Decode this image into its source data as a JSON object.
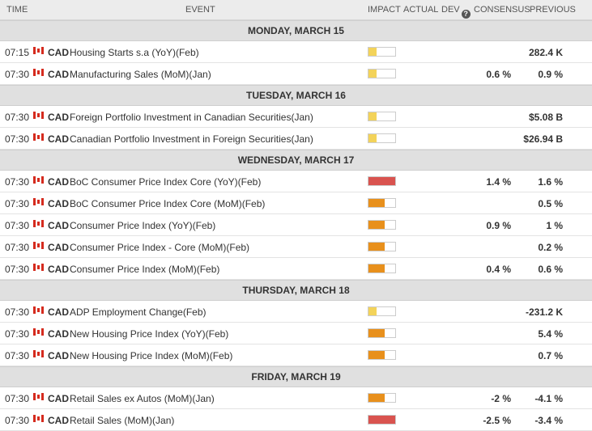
{
  "header": {
    "time": "TIME",
    "event": "EVENT",
    "impact": "IMPACT",
    "actual": "ACTUAL",
    "dev": "DEV",
    "info_icon": "info-icon",
    "consensus": "CONSENSUS",
    "previous": "PREVIOUS"
  },
  "impact_colors": {
    "low": "#f3d35a",
    "medium": "#e8901c",
    "high": "#d9534f"
  },
  "impact_levels": {
    "low": 0.3,
    "medium": 0.6,
    "high": 1.0
  },
  "flag_icon": "canada-flag-icon",
  "days": [
    {
      "label": "MONDAY, MARCH 15",
      "events": [
        {
          "time": "07:15",
          "currency": "CAD",
          "event": "Housing Starts s.a (YoY)(Feb)",
          "impact": "low",
          "actual": "",
          "dev": "",
          "consensus": "",
          "previous": "282.4 K"
        },
        {
          "time": "07:30",
          "currency": "CAD",
          "event": "Manufacturing Sales (MoM)(Jan)",
          "impact": "low",
          "actual": "",
          "dev": "",
          "consensus": "0.6 %",
          "previous": "0.9 %"
        }
      ]
    },
    {
      "label": "TUESDAY, MARCH 16",
      "events": [
        {
          "time": "07:30",
          "currency": "CAD",
          "event": "Foreign Portfolio Investment in Canadian Securities(Jan)",
          "impact": "low",
          "actual": "",
          "dev": "",
          "consensus": "",
          "previous": "$5.08 B"
        },
        {
          "time": "07:30",
          "currency": "CAD",
          "event": "Canadian Portfolio Investment in Foreign Securities(Jan)",
          "impact": "low",
          "actual": "",
          "dev": "",
          "consensus": "",
          "previous": "$26.94 B"
        }
      ]
    },
    {
      "label": "WEDNESDAY, MARCH 17",
      "events": [
        {
          "time": "07:30",
          "currency": "CAD",
          "event": "BoC Consumer Price Index Core (YoY)(Feb)",
          "impact": "high",
          "actual": "",
          "dev": "",
          "consensus": "1.4 %",
          "previous": "1.6 %"
        },
        {
          "time": "07:30",
          "currency": "CAD",
          "event": "BoC Consumer Price Index Core (MoM)(Feb)",
          "impact": "medium",
          "actual": "",
          "dev": "",
          "consensus": "",
          "previous": "0.5 %"
        },
        {
          "time": "07:30",
          "currency": "CAD",
          "event": "Consumer Price Index (YoY)(Feb)",
          "impact": "medium",
          "actual": "",
          "dev": "",
          "consensus": "0.9 %",
          "previous": "1 %"
        },
        {
          "time": "07:30",
          "currency": "CAD",
          "event": "Consumer Price Index - Core (MoM)(Feb)",
          "impact": "medium",
          "actual": "",
          "dev": "",
          "consensus": "",
          "previous": "0.2 %"
        },
        {
          "time": "07:30",
          "currency": "CAD",
          "event": "Consumer Price Index (MoM)(Feb)",
          "impact": "medium",
          "actual": "",
          "dev": "",
          "consensus": "0.4 %",
          "previous": "0.6 %"
        }
      ]
    },
    {
      "label": "THURSDAY, MARCH 18",
      "events": [
        {
          "time": "07:30",
          "currency": "CAD",
          "event": "ADP Employment Change(Feb)",
          "impact": "low",
          "actual": "",
          "dev": "",
          "consensus": "",
          "previous": "-231.2 K"
        },
        {
          "time": "07:30",
          "currency": "CAD",
          "event": "New Housing Price Index (YoY)(Feb)",
          "impact": "medium",
          "actual": "",
          "dev": "",
          "consensus": "",
          "previous": "5.4 %"
        },
        {
          "time": "07:30",
          "currency": "CAD",
          "event": "New Housing Price Index (MoM)(Feb)",
          "impact": "medium",
          "actual": "",
          "dev": "",
          "consensus": "",
          "previous": "0.7 %"
        }
      ]
    },
    {
      "label": "FRIDAY, MARCH 19",
      "events": [
        {
          "time": "07:30",
          "currency": "CAD",
          "event": "Retail Sales ex Autos (MoM)(Jan)",
          "impact": "medium",
          "actual": "",
          "dev": "",
          "consensus": "-2 %",
          "previous": "-4.1 %"
        },
        {
          "time": "07:30",
          "currency": "CAD",
          "event": "Retail Sales (MoM)(Jan)",
          "impact": "high",
          "actual": "",
          "dev": "",
          "consensus": "-2.5 %",
          "previous": "-3.4 %"
        }
      ]
    }
  ]
}
